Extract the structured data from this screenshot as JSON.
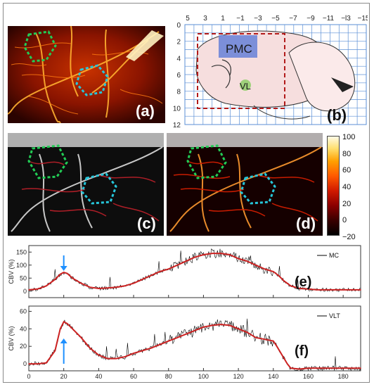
{
  "panels": {
    "a": {
      "label": "(a)"
    },
    "b": {
      "label": "(b)",
      "top_ticks": [
        "5",
        "3",
        "1",
        "−1",
        "−3",
        "−5",
        "−7",
        "−9",
        "−11",
        "−l3",
        "−15"
      ],
      "left_ticks": [
        "0",
        "2",
        "4",
        "6",
        "8",
        "10",
        "12"
      ],
      "region_pmc": "PMC",
      "region_vl": "VL",
      "colors": {
        "pmc": "#6f86d8",
        "vl": "#8fcf6a",
        "box": "#b21a1a",
        "grid": "#5b8fd6"
      }
    },
    "c": {
      "label": "(c)"
    },
    "d": {
      "label": "(d)"
    }
  },
  "colorbar": {
    "ticks": [
      "100",
      "80",
      "60",
      "40",
      "20",
      "0",
      "−20"
    ],
    "min": -20,
    "max": 100
  },
  "roi_colors": {
    "motor_cortex": "#22cc55",
    "thalamus": "#26c6da"
  },
  "arrow_color": "#1e90ff",
  "chart_data": [
    {
      "type": "line",
      "label": "(e)",
      "ylabel": "CBV (%)",
      "yticks": [
        "0",
        "50",
        "100",
        "150"
      ],
      "ylim": [
        -25,
        175
      ],
      "xlim": [
        0,
        190
      ],
      "legend": "MC",
      "arrow_x": 20,
      "series_colors": {
        "raw": "#000000",
        "smooth": "#cc2222"
      },
      "x": [
        0,
        5,
        10,
        15,
        18,
        20,
        22,
        25,
        30,
        35,
        40,
        45,
        50,
        55,
        60,
        65,
        70,
        75,
        80,
        85,
        90,
        95,
        100,
        105,
        110,
        115,
        120,
        125,
        130,
        135,
        140,
        143,
        146,
        150,
        155,
        160,
        165,
        170,
        175,
        180,
        185,
        190
      ],
      "values": [
        5,
        8,
        20,
        45,
        65,
        72,
        68,
        50,
        30,
        15,
        10,
        12,
        15,
        20,
        30,
        45,
        60,
        75,
        85,
        100,
        115,
        130,
        140,
        145,
        145,
        140,
        125,
        115,
        100,
        85,
        75,
        60,
        40,
        20,
        10,
        8,
        5,
        5,
        5,
        5,
        5,
        5
      ]
    },
    {
      "type": "line",
      "label": "(f)",
      "ylabel": "CBV (%)",
      "yticks": [
        "0",
        "20",
        "40",
        "60"
      ],
      "ylim": [
        -8,
        66
      ],
      "xlim": [
        0,
        190
      ],
      "xticks": [
        "0",
        "20",
        "40",
        "60",
        "80",
        "100",
        "120",
        "140",
        "160",
        "180"
      ],
      "legend": "VLT",
      "arrow_x": 20,
      "series_colors": {
        "raw": "#000000",
        "smooth": "#cc2222"
      },
      "x": [
        0,
        5,
        10,
        15,
        18,
        20,
        22,
        25,
        30,
        35,
        40,
        45,
        50,
        55,
        60,
        65,
        70,
        75,
        80,
        85,
        90,
        95,
        100,
        105,
        110,
        115,
        120,
        125,
        130,
        135,
        140,
        142,
        145,
        148,
        150,
        155,
        160,
        165,
        170,
        175,
        180,
        185,
        190
      ],
      "values": [
        0,
        0,
        1,
        15,
        40,
        48,
        46,
        40,
        30,
        18,
        10,
        6,
        6,
        8,
        12,
        15,
        18,
        22,
        26,
        30,
        34,
        38,
        42,
        44,
        45,
        44,
        40,
        36,
        30,
        28,
        26,
        20,
        10,
        0,
        -5,
        -6,
        -5,
        -5,
        -5,
        -5,
        -5,
        -5,
        -5
      ]
    }
  ]
}
